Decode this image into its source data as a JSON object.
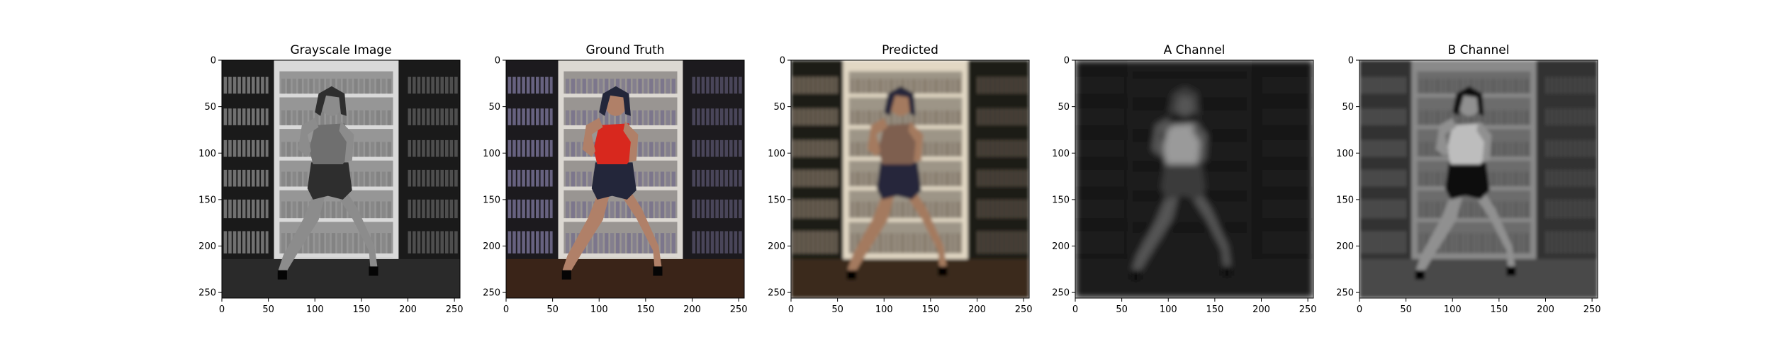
{
  "chart_data": [
    {
      "type": "image",
      "title": "Grayscale Image",
      "xticks": [
        0,
        50,
        100,
        150,
        200,
        250
      ],
      "yticks": [
        0,
        50,
        100,
        150,
        200,
        250
      ],
      "xlim": [
        0,
        256
      ],
      "ylim": [
        256,
        0
      ],
      "colors": {
        "bg_dark": "#1a1a1a",
        "shelf": "#d9d9d9",
        "book": "#7a7a7a",
        "floor": "#2a2a2a",
        "skin": "#8c8c8c",
        "top": "#6f6f6f",
        "shorts": "#2e2e2e"
      }
    },
    {
      "type": "image",
      "title": "Ground Truth",
      "xticks": [
        0,
        50,
        100,
        150,
        200,
        250
      ],
      "yticks": [
        0,
        50,
        100,
        150,
        200,
        250
      ],
      "xlim": [
        0,
        256
      ],
      "ylim": [
        256,
        0
      ],
      "colors": {
        "bg_dark": "#1c1a1e",
        "shelf": "#dcd8d2",
        "book": "#6f6a8a",
        "floor": "#3a2418",
        "skin": "#b08068",
        "top": "#d8281e",
        "shorts": "#23263a"
      }
    },
    {
      "type": "image",
      "title": "Predicted",
      "xticks": [
        0,
        50,
        100,
        150,
        200,
        250
      ],
      "yticks": [
        0,
        50,
        100,
        150,
        200,
        250
      ],
      "xlim": [
        0,
        256
      ],
      "ylim": [
        256,
        0
      ],
      "colors": {
        "bg_dark": "#1e1a16",
        "shelf": "#e2d8c4",
        "book": "#7a6e60",
        "floor": "#3a2a1c",
        "skin": "#a47a5e",
        "top": "#7e5e50",
        "shorts": "#28283a"
      }
    },
    {
      "type": "image",
      "title": "A Channel",
      "xticks": [
        0,
        50,
        100,
        150,
        200,
        250
      ],
      "yticks": [
        0,
        50,
        100,
        150,
        200,
        250
      ],
      "xlim": [
        0,
        256
      ],
      "ylim": [
        256,
        0
      ],
      "colors": {
        "bg_dark": "#121212",
        "shelf": "#1c1c1c",
        "book": "#262626",
        "floor": "#1a1a1a",
        "skin": "#555555",
        "top": "#9a9a9a",
        "shorts": "#3a3a3a"
      }
    },
    {
      "type": "image",
      "title": "B Channel",
      "xticks": [
        0,
        50,
        100,
        150,
        200,
        250
      ],
      "yticks": [
        0,
        50,
        100,
        150,
        200,
        250
      ],
      "xlim": [
        0,
        256
      ],
      "ylim": [
        256,
        0
      ],
      "colors": {
        "bg_dark": "#333333",
        "shelf": "#8a8a8a",
        "book": "#555555",
        "floor": "#4a4a4a",
        "skin": "#909090",
        "top": "#bdbdbd",
        "shorts": "#111111"
      }
    }
  ]
}
